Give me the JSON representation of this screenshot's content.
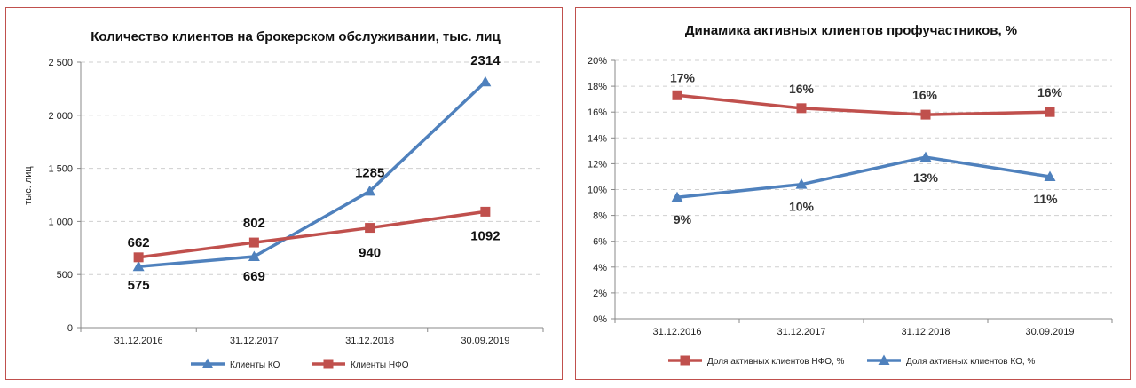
{
  "chart_data": [
    {
      "type": "line",
      "title": "Количество клиентов на брокерском обслуживании, тыс. лиц",
      "xlabel": "",
      "ylabel": "тыс. лиц",
      "categories": [
        "31.12.2016",
        "31.12.2017",
        "31.12.2018",
        "30.09.2019"
      ],
      "ylim": [
        0,
        2500
      ],
      "yticks": [
        "0",
        "500",
        "1 000",
        "1 500",
        "2 000",
        "2 500"
      ],
      "grid": true,
      "legend": "bottom",
      "series": [
        {
          "name": "Клиенты КО",
          "values": [
            575,
            669,
            1285,
            2314
          ],
          "labels": [
            "575",
            "669",
            "1285",
            "2314"
          ],
          "color": "#4f81bd",
          "marker": "triangle"
        },
        {
          "name": "Клиенты НФО",
          "values": [
            662,
            802,
            940,
            1092
          ],
          "labels": [
            "662",
            "802",
            "940",
            "1092"
          ],
          "color": "#c0504d",
          "marker": "square"
        }
      ]
    },
    {
      "type": "line",
      "title": "Динамика активных клиентов профучастников, %",
      "xlabel": "",
      "ylabel": "",
      "categories": [
        "31.12.2016",
        "31.12.2017",
        "31.12.2018",
        "30.09.2019"
      ],
      "ylim": [
        0,
        20
      ],
      "yticks": [
        "0%",
        "2%",
        "4%",
        "6%",
        "8%",
        "10%",
        "12%",
        "14%",
        "16%",
        "18%",
        "20%"
      ],
      "grid": true,
      "legend": "bottom",
      "series": [
        {
          "name": "Доля активных клиентов НФО, %",
          "values": [
            17.3,
            16.3,
            15.8,
            16.0
          ],
          "labels": [
            "17%",
            "16%",
            "16%",
            "16%"
          ],
          "color": "#c0504d",
          "marker": "square"
        },
        {
          "name": "Доля активных клиентов КО, %",
          "values": [
            9.4,
            10.4,
            12.5,
            11.0
          ],
          "labels": [
            "9%",
            "10%",
            "13%",
            "11%"
          ],
          "color": "#4f81bd",
          "marker": "triangle"
        }
      ]
    }
  ]
}
